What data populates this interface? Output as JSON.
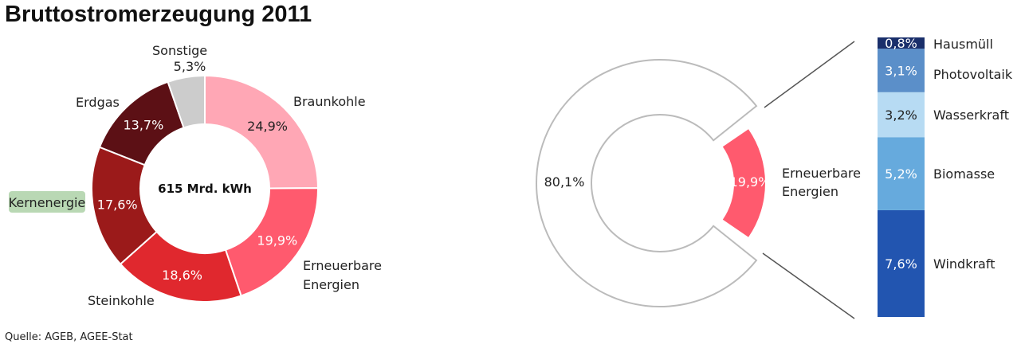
{
  "title": "Bruttostromerzeugung 2011",
  "source": "Quelle: AGEB, AGEE-Stat",
  "chart_data": [
    {
      "type": "pie",
      "center_label": "615 Mrd. kWh",
      "slices": [
        {
          "label": "Braunkohle",
          "value": 24.9,
          "value_label": "24,9%",
          "color": "#ffa7b5"
        },
        {
          "label": "Erneuerbare Energien",
          "value": 19.9,
          "value_label": "19,9%",
          "color": "#ff5a6e"
        },
        {
          "label": "Steinkohle",
          "value": 18.6,
          "value_label": "18,6%",
          "color": "#e0282e"
        },
        {
          "label": "Kernenergie",
          "value": 17.6,
          "value_label": "17,6%",
          "color": "#9b1a1a",
          "label_highlight": "#b9d8b4"
        },
        {
          "label": "Erdgas",
          "value": 13.7,
          "value_label": "13,7%",
          "color": "#5c1015"
        },
        {
          "label": "Sonstige",
          "value": 5.3,
          "value_label": "5,3%",
          "color": "#cccccc"
        }
      ]
    },
    {
      "type": "pie",
      "slices": [
        {
          "label": "",
          "value": 80.1,
          "value_label": "80,1%",
          "color": "#ffffff"
        },
        {
          "label": "Erneuerbare Energien",
          "value": 19.9,
          "value_label": "19,9%",
          "color": "#ff5a6e"
        }
      ]
    },
    {
      "type": "bar",
      "stacked": true,
      "categories": [
        "Windkraft",
        "Biomasse",
        "Wasserkraft",
        "Photovoltaik",
        "Hausmüll"
      ],
      "values": [
        7.6,
        5.2,
        3.2,
        3.1,
        0.8
      ],
      "value_labels": [
        "7,6%",
        "5,2%",
        "3,2%",
        "3,1%",
        "0,8%"
      ],
      "colors": [
        "#2255b0",
        "#66aadd",
        "#b7dbf3",
        "#5b8fc9",
        "#1a2f6b"
      ]
    }
  ]
}
